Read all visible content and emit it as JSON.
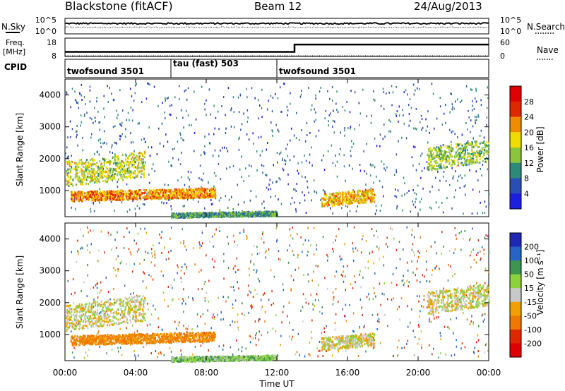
{
  "header": {
    "station": "Blackstone (fitACF)",
    "beam": "Beam 12",
    "date": "24/Aug/2013"
  },
  "noise_panel": {
    "left_label": "N.Sky",
    "right_label": "N.Search",
    "left_ticks": [
      "10^5",
      "10^0"
    ],
    "right_ticks": [
      "10^5",
      "10^0"
    ]
  },
  "freq_panel": {
    "left_label_line1": "Freq.",
    "left_label_line2": "[MHz]",
    "left_ticks": [
      "18",
      "8"
    ],
    "right_label": "Nave",
    "right_ticks": [
      "60",
      "0"
    ]
  },
  "cpid": {
    "label": "CPID",
    "segments": [
      {
        "name": "twofsound 3501",
        "start_hour": 0
      },
      {
        "name": "tau (fast) 503",
        "start_hour": 6
      },
      {
        "name": "twofsound 3501",
        "start_hour": 12
      }
    ]
  },
  "power_panel": {
    "ylabel": "Slant Range [km]",
    "yticks": [
      "1000",
      "2000",
      "3000",
      "4000"
    ],
    "colorbar_label": "Power [dB]",
    "colorbar_ticks": [
      "4",
      "8",
      "12",
      "16",
      "20",
      "24",
      "28"
    ],
    "colorbar_colors": [
      "#1e1ee0",
      "#2850b4",
      "#2e8a78",
      "#8cc43c",
      "#f0dc00",
      "#f08c00",
      "#e02800",
      "#e00000"
    ]
  },
  "velocity_panel": {
    "ylabel": "Slant Range [km]",
    "yticks": [
      "1000",
      "2000",
      "3000",
      "4000"
    ],
    "colorbar_label": "Velocity [m s⁻¹]",
    "colorbar_ticks": [
      "200",
      "100",
      "50",
      "15",
      "-15",
      "-50",
      "-100",
      "-200"
    ],
    "colorbar_colors": [
      "#1e28b4",
      "#2864c8",
      "#3c9650",
      "#8cd23c",
      "#c8c8c8",
      "#f0a000",
      "#f07800",
      "#e02800",
      "#e00000"
    ]
  },
  "xaxis": {
    "label": "Time UT",
    "ticks": [
      "00:00",
      "04:00",
      "08:00",
      "12:00",
      "16:00",
      "20:00",
      "00:00"
    ]
  },
  "chart_data": [
    {
      "type": "line",
      "title": "Blackstone (fitACF)",
      "series": [
        {
          "name": "N.Sky"
        },
        {
          "name": "N.Search"
        }
      ],
      "xlim": [
        0,
        24
      ],
      "ylim_log10": [
        0,
        5
      ],
      "approx_log10_level": 2.5
    },
    {
      "type": "line",
      "series": [
        {
          "name": "Freq.",
          "x": [
            0,
            13,
            13,
            24
          ],
          "y": [
            10.5,
            10.5,
            14.5,
            14.5
          ]
        },
        {
          "name": "Nave",
          "x": [
            0,
            24
          ],
          "y": [
            8,
            8
          ]
        }
      ],
      "xlim": [
        0,
        24
      ],
      "ylim": [
        8,
        18
      ]
    },
    {
      "type": "heatmap",
      "xlabel": "Time UT",
      "ylabel": "Slant Range [km]",
      "xlim": [
        0,
        24
      ],
      "ylim": [
        180,
        4500
      ],
      "colorbar_label": "Power [dB]",
      "clim": [
        0,
        32
      ],
      "features": [
        {
          "t0": 0.3,
          "t1": 8.5,
          "r0": 750,
          "r1": 1050,
          "power": 22
        },
        {
          "t0": 0.0,
          "t1": 4.5,
          "r0": 1300,
          "r1": 2100,
          "power": 16
        },
        {
          "t0": 6.0,
          "t1": 12.0,
          "r0": 200,
          "r1": 350,
          "power": 11
        },
        {
          "t0": 14.5,
          "t1": 17.5,
          "r0": 600,
          "r1": 1000,
          "power": 20
        },
        {
          "t0": 20.5,
          "t1": 24.0,
          "r0": 1800,
          "r1": 2500,
          "power": 14
        }
      ]
    },
    {
      "type": "heatmap",
      "xlabel": "Time UT",
      "ylabel": "Slant Range [km]",
      "xlim": [
        0,
        24
      ],
      "ylim": [
        180,
        4500
      ],
      "colorbar_label": "Velocity [m s⁻¹]",
      "clim": [
        -250,
        250
      ],
      "features": [
        {
          "t0": 0.3,
          "t1": 8.5,
          "r0": 750,
          "r1": 1050,
          "velocity": -60
        },
        {
          "t0": 0.0,
          "t1": 4.5,
          "r0": 1300,
          "r1": 2100,
          "velocity": 0
        },
        {
          "t0": 6.0,
          "t1": 12.0,
          "r0": 200,
          "r1": 350,
          "velocity": 40
        },
        {
          "t0": 14.5,
          "t1": 17.5,
          "r0": 600,
          "r1": 1000,
          "velocity": 0
        },
        {
          "t0": 20.5,
          "t1": 24.0,
          "r0": 1800,
          "r1": 2500,
          "velocity": 0
        }
      ]
    }
  ]
}
